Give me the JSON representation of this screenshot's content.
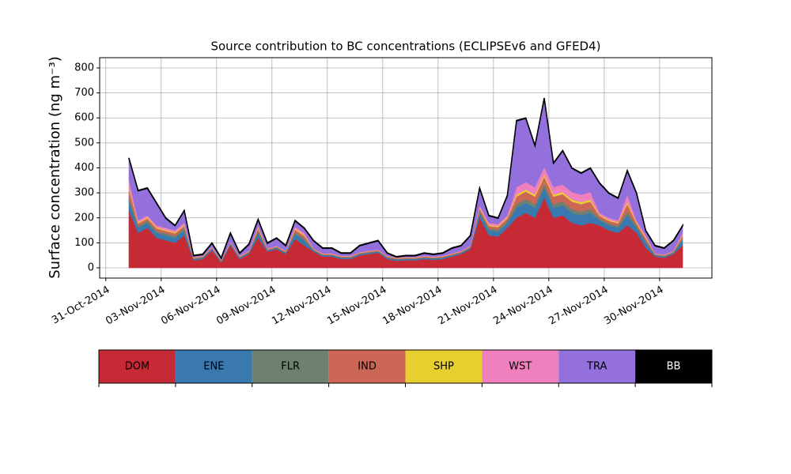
{
  "chart_data": {
    "type": "stacked_area",
    "title": "Source contribution to BC concentrations (ECLIPSEv6 and GFED4)",
    "y_label": "Surface concentration (ng m⁻³)",
    "x": [
      "2014-11-01T06:00",
      "2014-11-01T18:00",
      "2014-11-02T06:00",
      "2014-11-02T18:00",
      "2014-11-03T06:00",
      "2014-11-03T18:00",
      "2014-11-04T06:00",
      "2014-11-04T18:00",
      "2014-11-05T06:00",
      "2014-11-05T18:00",
      "2014-11-06T06:00",
      "2014-11-06T18:00",
      "2014-11-07T06:00",
      "2014-11-07T18:00",
      "2014-11-08T06:00",
      "2014-11-08T18:00",
      "2014-11-09T06:00",
      "2014-11-09T18:00",
      "2014-11-10T06:00",
      "2014-11-10T18:00",
      "2014-11-11T06:00",
      "2014-11-11T18:00",
      "2014-11-12T06:00",
      "2014-11-12T18:00",
      "2014-11-13T06:00",
      "2014-11-13T18:00",
      "2014-11-14T06:00",
      "2014-11-14T18:00",
      "2014-11-15T06:00",
      "2014-11-15T18:00",
      "2014-11-16T06:00",
      "2014-11-16T18:00",
      "2014-11-17T06:00",
      "2014-11-17T18:00",
      "2014-11-18T06:00",
      "2014-11-18T18:00",
      "2014-11-19T06:00",
      "2014-11-19T18:00",
      "2014-11-20T06:00",
      "2014-11-20T18:00",
      "2014-11-21T06:00",
      "2014-11-21T18:00",
      "2014-11-22T06:00",
      "2014-11-22T18:00",
      "2014-11-23T06:00",
      "2014-11-23T18:00",
      "2014-11-24T06:00",
      "2014-11-24T18:00",
      "2014-11-25T06:00",
      "2014-11-25T18:00",
      "2014-11-26T06:00",
      "2014-11-26T18:00",
      "2014-11-27T06:00",
      "2014-11-27T18:00",
      "2014-11-28T06:00",
      "2014-11-28T18:00",
      "2014-11-29T06:00",
      "2014-11-29T18:00",
      "2014-11-30T06:00",
      "2014-11-30T18:00",
      "2014-12-01T06:00"
    ],
    "series": [
      {
        "name": "DOM",
        "color": "#c52a35",
        "values": [
          230,
          140,
          160,
          120,
          110,
          100,
          130,
          30,
          35,
          70,
          20,
          90,
          35,
          55,
          120,
          65,
          75,
          55,
          115,
          90,
          65,
          45,
          45,
          35,
          35,
          50,
          55,
          60,
          35,
          28,
          30,
          30,
          35,
          32,
          35,
          45,
          55,
          75,
          200,
          130,
          125,
          160,
          200,
          220,
          200,
          280,
          200,
          210,
          180,
          170,
          180,
          170,
          150,
          140,
          170,
          140,
          80,
          45,
          40,
          55,
          90
        ]
      },
      {
        "name": "ENE",
        "color": "#3a78b0",
        "values": [
          40,
          20,
          20,
          20,
          20,
          20,
          20,
          5,
          5,
          5,
          5,
          5,
          5,
          5,
          20,
          5,
          5,
          5,
          20,
          20,
          5,
          5,
          5,
          5,
          5,
          5,
          5,
          5,
          5,
          5,
          5,
          5,
          5,
          5,
          5,
          5,
          5,
          5,
          20,
          20,
          20,
          20,
          40,
          40,
          40,
          40,
          40,
          40,
          40,
          40,
          40,
          20,
          20,
          20,
          40,
          20,
          20,
          5,
          5,
          5,
          20
        ]
      },
      {
        "name": "FLR",
        "color": "#6e8070",
        "values": [
          15,
          8,
          8,
          8,
          8,
          8,
          8,
          2,
          2,
          2,
          2,
          2,
          2,
          2,
          8,
          2,
          2,
          2,
          8,
          8,
          2,
          2,
          2,
          2,
          2,
          2,
          2,
          2,
          2,
          2,
          2,
          2,
          2,
          2,
          2,
          2,
          2,
          2,
          8,
          8,
          8,
          8,
          15,
          15,
          15,
          15,
          15,
          15,
          15,
          15,
          15,
          8,
          8,
          8,
          15,
          8,
          8,
          2,
          2,
          2,
          8
        ]
      },
      {
        "name": "IND",
        "color": "#cc6655",
        "values": [
          30,
          10,
          10,
          10,
          10,
          10,
          10,
          3,
          3,
          3,
          3,
          3,
          3,
          3,
          10,
          3,
          3,
          3,
          10,
          10,
          3,
          3,
          3,
          3,
          3,
          3,
          3,
          3,
          3,
          3,
          3,
          3,
          3,
          3,
          3,
          3,
          3,
          3,
          10,
          10,
          10,
          10,
          30,
          30,
          30,
          30,
          30,
          30,
          30,
          30,
          30,
          10,
          10,
          10,
          30,
          10,
          10,
          3,
          3,
          3,
          10
        ]
      },
      {
        "name": "SHP",
        "color": "#e8cf30",
        "values": [
          8,
          4,
          4,
          4,
          4,
          4,
          4,
          1,
          1,
          1,
          1,
          1,
          1,
          1,
          4,
          1,
          1,
          1,
          4,
          4,
          1,
          1,
          1,
          1,
          1,
          1,
          1,
          1,
          1,
          1,
          1,
          1,
          1,
          1,
          1,
          1,
          1,
          1,
          4,
          4,
          4,
          4,
          8,
          8,
          8,
          8,
          8,
          8,
          8,
          8,
          8,
          4,
          4,
          4,
          8,
          4,
          4,
          1,
          1,
          1,
          4
        ]
      },
      {
        "name": "WST",
        "color": "#f07fbd",
        "values": [
          30,
          8,
          8,
          8,
          8,
          8,
          8,
          2,
          2,
          2,
          2,
          2,
          2,
          2,
          8,
          2,
          2,
          2,
          8,
          8,
          2,
          2,
          2,
          2,
          2,
          2,
          2,
          2,
          2,
          2,
          2,
          2,
          2,
          2,
          2,
          2,
          2,
          2,
          8,
          8,
          8,
          8,
          30,
          30,
          30,
          30,
          30,
          30,
          30,
          30,
          30,
          8,
          8,
          8,
          30,
          8,
          8,
          2,
          2,
          2,
          8
        ]
      },
      {
        "name": "TRA",
        "color": "#9370db",
        "values": [
          85,
          118,
          108,
          88,
          38,
          18,
          48,
          5,
          5,
          15,
          5,
          35,
          10,
          25,
          23,
          20,
          30,
          20,
          23,
          18,
          30,
          20,
          20,
          10,
          10,
          25,
          30,
          35,
          10,
          2,
          5,
          5,
          10,
          8,
          10,
          20,
          20,
          40,
          68,
          28,
          23,
          78,
          265,
          255,
          165,
          275,
          95,
          135,
          95,
          85,
          95,
          118,
          98,
          88,
          95,
          108,
          18,
          30,
          25,
          40,
          28
        ]
      },
      {
        "name": "BB",
        "color": "#000000",
        "values": [
          2,
          2,
          2,
          2,
          2,
          2,
          2,
          2,
          2,
          2,
          2,
          2,
          2,
          2,
          2,
          2,
          2,
          2,
          2,
          2,
          2,
          2,
          2,
          2,
          2,
          2,
          2,
          2,
          2,
          2,
          2,
          2,
          2,
          2,
          2,
          2,
          2,
          2,
          2,
          2,
          2,
          2,
          2,
          2,
          2,
          2,
          2,
          2,
          2,
          2,
          2,
          2,
          2,
          2,
          2,
          2,
          2,
          2,
          2,
          2,
          2
        ]
      }
    ],
    "xlim": [
      "2014-10-30T16:00",
      "2014-12-02T20:00"
    ],
    "xticks": [
      {
        "value": "2014-10-31T00:00",
        "label": "31-Oct-2014"
      },
      {
        "value": "2014-11-03T00:00",
        "label": "03-Nov-2014"
      },
      {
        "value": "2014-11-06T00:00",
        "label": "06-Nov-2014"
      },
      {
        "value": "2014-11-09T00:00",
        "label": "09-Nov-2014"
      },
      {
        "value": "2014-11-12T00:00",
        "label": "12-Nov-2014"
      },
      {
        "value": "2014-11-15T00:00",
        "label": "15-Nov-2014"
      },
      {
        "value": "2014-11-18T00:00",
        "label": "18-Nov-2014"
      },
      {
        "value": "2014-11-21T00:00",
        "label": "21-Nov-2014"
      },
      {
        "value": "2014-11-24T00:00",
        "label": "24-Nov-2014"
      },
      {
        "value": "2014-11-27T00:00",
        "label": "27-Nov-2014"
      },
      {
        "value": "2014-11-30T00:00",
        "label": "30-Nov-2014"
      }
    ],
    "ylim": [
      -41,
      841
    ],
    "yticks": [
      0,
      100,
      200,
      300,
      400,
      500,
      600,
      700,
      800
    ],
    "grid": true
  }
}
